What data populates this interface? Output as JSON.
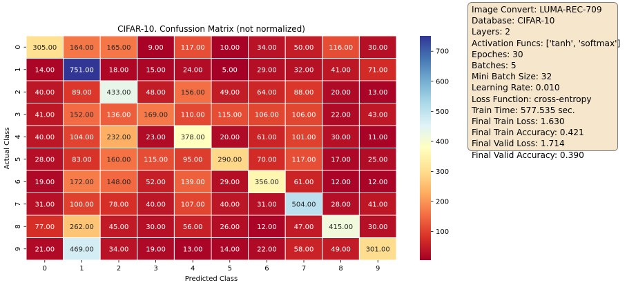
{
  "chart_data": {
    "type": "heatmap",
    "title": "CIFAR-10. Confussion Matrix (not normalized)",
    "xlabel": "Predicted Class",
    "ylabel": "Actual Class",
    "x_categories": [
      "0",
      "1",
      "2",
      "3",
      "4",
      "5",
      "6",
      "7",
      "8",
      "9"
    ],
    "y_categories": [
      "0",
      "1",
      "2",
      "3",
      "4",
      "5",
      "6",
      "7",
      "8",
      "9"
    ],
    "values": [
      [
        305,
        164,
        165,
        9,
        117,
        10,
        34,
        50,
        116,
        30
      ],
      [
        14,
        751,
        18,
        15,
        24,
        5,
        29,
        32,
        41,
        71
      ],
      [
        40,
        89,
        433,
        48,
        156,
        49,
        64,
        88,
        20,
        13
      ],
      [
        41,
        152,
        136,
        169,
        110,
        115,
        106,
        106,
        22,
        43
      ],
      [
        40,
        104,
        232,
        23,
        378,
        20,
        61,
        101,
        30,
        11
      ],
      [
        28,
        83,
        160,
        115,
        95,
        290,
        70,
        117,
        17,
        25
      ],
      [
        19,
        172,
        148,
        52,
        139,
        29,
        356,
        61,
        12,
        12
      ],
      [
        31,
        100,
        78,
        40,
        107,
        40,
        31,
        504,
        28,
        41
      ],
      [
        77,
        262,
        45,
        30,
        56,
        26,
        12,
        47,
        415,
        30
      ],
      [
        21,
        469,
        34,
        19,
        13,
        14,
        22,
        58,
        49,
        301
      ]
    ],
    "cell_labels": [
      [
        "305.00",
        "164.00",
        "165.00",
        "9.00",
        "117.00",
        "10.00",
        "34.00",
        "50.00",
        "116.00",
        "30.00"
      ],
      [
        "14.00",
        "751.00",
        "18.00",
        "15.00",
        "24.00",
        "5.00",
        "29.00",
        "32.00",
        "41.00",
        "71.00"
      ],
      [
        "40.00",
        "89.00",
        "433.00",
        "48.00",
        "156.00",
        "49.00",
        "64.00",
        "88.00",
        "20.00",
        "13.00"
      ],
      [
        "41.00",
        "152.00",
        "136.00",
        "169.00",
        "110.00",
        "115.00",
        "106.00",
        "106.00",
        "22.00",
        "43.00"
      ],
      [
        "40.00",
        "104.00",
        "232.00",
        "23.00",
        "378.00",
        "20.00",
        "61.00",
        "101.00",
        "30.00",
        "11.00"
      ],
      [
        "28.00",
        "83.00",
        "160.00",
        "115.00",
        "95.00",
        "290.00",
        "70.00",
        "117.00",
        "17.00",
        "25.00"
      ],
      [
        "19.00",
        "172.00",
        "148.00",
        "52.00",
        "139.00",
        "29.00",
        "356.00",
        "61.00",
        "12.00",
        "12.00"
      ],
      [
        "31.00",
        "100.00",
        "78.00",
        "40.00",
        "107.00",
        "40.00",
        "31.00",
        "504.00",
        "28.00",
        "41.00"
      ],
      [
        "77.00",
        "262.00",
        "45.00",
        "30.00",
        "56.00",
        "26.00",
        "12.00",
        "47.00",
        "415.00",
        "30.00"
      ],
      [
        "21.00",
        "469.00",
        "34.00",
        "19.00",
        "13.00",
        "14.00",
        "22.00",
        "58.00",
        "49.00",
        "301.00"
      ]
    ],
    "colormap": "RdYlBu",
    "color_range": [
      5,
      751
    ],
    "colorbar_ticks": [
      100,
      200,
      300,
      400,
      500,
      600,
      700
    ],
    "colorbar_tick_labels": [
      "100",
      "200",
      "300",
      "400",
      "500",
      "600",
      "700"
    ],
    "colormap_stops": [
      "#a50026",
      "#d73027",
      "#f46d43",
      "#fdae61",
      "#fee090",
      "#ffffbf",
      "#e0f3f8",
      "#abd9e9",
      "#74add1",
      "#4575b4",
      "#313695"
    ],
    "cell_border_color": "#ffffff",
    "text_dark": "#262626",
    "text_light": "#ffffff"
  },
  "info_box": {
    "lines": [
      "Image Convert: LUMA-REC-709",
      "Database: CIFAR-10",
      "Layers: 2",
      "Activation Funcs: ['tanh', 'softmax']",
      "Epoches: 30",
      "Batches: 5",
      "Mini Batch Size: 32",
      "Learning Rate: 0.010",
      "Loss Function: cross-entropy",
      "Train Time: 577.535 sec.",
      "Final Train Loss: 1.630",
      "Final Train Accuracy: 0.421",
      "Final Valid Loss: 1.714",
      "Final Valid Accuracy: 0.390"
    ],
    "background_color": "#f5e6cc"
  }
}
